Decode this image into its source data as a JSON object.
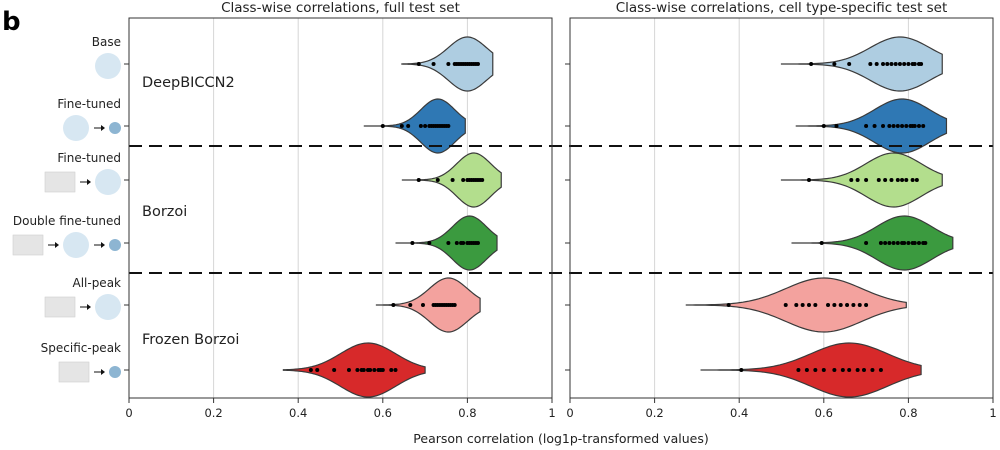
{
  "panel_label": "b",
  "chart_data": {
    "type": "violin",
    "xlabel": "Pearson correlation (log1p-transformed values)",
    "xlim": [
      0,
      1
    ],
    "xticks": [
      "0",
      "0.2",
      "0.4",
      "0.6",
      "0.8",
      "1"
    ],
    "grid": "vertical",
    "groups": [
      "DeepBICCN2",
      "Borzoi",
      "Frozen Borzoi"
    ],
    "rows": [
      {
        "label": "Base",
        "group": "DeepBICCN2",
        "color": "#aecde1",
        "schematic": [
          "circle-large"
        ]
      },
      {
        "label": "Fine-tuned",
        "group": "DeepBICCN2",
        "color": "#2f78b4",
        "schematic": [
          "circle-large",
          "arrow",
          "circle-small"
        ]
      },
      {
        "label": "Fine-tuned",
        "group": "Borzoi",
        "color": "#b3de8d",
        "schematic": [
          "rect",
          "arrow",
          "circle-large"
        ]
      },
      {
        "label": "Double fine-tuned",
        "group": "Borzoi",
        "color": "#3b9a3f",
        "schematic": [
          "rect",
          "arrow",
          "circle-large",
          "arrow",
          "circle-small"
        ]
      },
      {
        "label": "All-peak",
        "group": "Frozen Borzoi",
        "color": "#f3a29e",
        "schematic": [
          "rect",
          "arrow",
          "circle-large"
        ]
      },
      {
        "label": "Specific-peak",
        "group": "Frozen Borzoi",
        "color": "#d7292a",
        "schematic": [
          "rect",
          "arrow",
          "circle-small"
        ]
      }
    ],
    "panels": [
      {
        "title": "Class-wise correlations, full test set",
        "series": [
          {
            "min": 0.645,
            "max": 0.86,
            "median": 0.8,
            "spread": 0.045,
            "points": [
              0.685,
              0.72,
              0.755,
              0.77,
              0.775,
              0.78,
              0.785,
              0.79,
              0.795,
              0.8,
              0.805,
              0.81,
              0.815,
              0.82,
              0.825
            ]
          },
          {
            "min": 0.555,
            "max": 0.795,
            "median": 0.73,
            "spread": 0.04,
            "points": [
              0.6,
              0.645,
              0.66,
              0.69,
              0.7,
              0.71,
              0.715,
              0.72,
              0.725,
              0.73,
              0.735,
              0.74,
              0.745,
              0.75,
              0.755
            ]
          },
          {
            "min": 0.645,
            "max": 0.88,
            "median": 0.815,
            "spread": 0.04,
            "points": [
              0.685,
              0.73,
              0.765,
              0.79,
              0.8,
              0.805,
              0.81,
              0.815,
              0.82,
              0.825,
              0.83,
              0.835
            ]
          },
          {
            "min": 0.63,
            "max": 0.87,
            "median": 0.805,
            "spread": 0.04,
            "points": [
              0.67,
              0.71,
              0.755,
              0.775,
              0.785,
              0.79,
              0.8,
              0.805,
              0.81,
              0.815,
              0.82,
              0.825
            ]
          },
          {
            "min": 0.585,
            "max": 0.83,
            "median": 0.755,
            "spread": 0.045,
            "points": [
              0.625,
              0.665,
              0.695,
              0.72,
              0.725,
              0.73,
              0.735,
              0.74,
              0.745,
              0.75,
              0.755,
              0.76,
              0.765,
              0.77
            ]
          },
          {
            "min": 0.365,
            "max": 0.7,
            "median": 0.565,
            "spread": 0.065,
            "points": [
              0.43,
              0.445,
              0.485,
              0.52,
              0.54,
              0.55,
              0.555,
              0.565,
              0.57,
              0.58,
              0.59,
              0.595,
              0.6,
              0.62,
              0.63
            ]
          }
        ]
      },
      {
        "title": "Class-wise correlations, cell type-specific test set",
        "series": [
          {
            "min": 0.5,
            "max": 0.88,
            "median": 0.78,
            "spread": 0.07,
            "points": [
              0.57,
              0.625,
              0.66,
              0.71,
              0.725,
              0.74,
              0.75,
              0.76,
              0.77,
              0.78,
              0.79,
              0.8,
              0.81,
              0.815,
              0.825,
              0.83
            ]
          },
          {
            "min": 0.535,
            "max": 0.89,
            "median": 0.785,
            "spread": 0.065,
            "points": [
              0.6,
              0.63,
              0.7,
              0.72,
              0.74,
              0.755,
              0.765,
              0.775,
              0.785,
              0.795,
              0.805,
              0.81,
              0.815,
              0.825,
              0.835
            ]
          },
          {
            "min": 0.5,
            "max": 0.88,
            "median": 0.765,
            "spread": 0.065,
            "points": [
              0.565,
              0.665,
              0.68,
              0.7,
              0.73,
              0.745,
              0.76,
              0.775,
              0.785,
              0.795,
              0.81,
              0.82
            ]
          },
          {
            "min": 0.525,
            "max": 0.905,
            "median": 0.79,
            "spread": 0.065,
            "points": [
              0.595,
              0.7,
              0.735,
              0.745,
              0.755,
              0.765,
              0.775,
              0.785,
              0.79,
              0.8,
              0.81,
              0.815,
              0.825,
              0.835,
              0.84
            ]
          },
          {
            "min": 0.275,
            "max": 0.795,
            "median": 0.6,
            "spread": 0.09,
            "points": [
              0.375,
              0.51,
              0.535,
              0.55,
              0.565,
              0.58,
              0.61,
              0.625,
              0.64,
              0.655,
              0.67,
              0.685,
              0.7
            ]
          },
          {
            "min": 0.31,
            "max": 0.83,
            "median": 0.66,
            "spread": 0.09,
            "points": [
              0.405,
              0.54,
              0.56,
              0.58,
              0.6,
              0.625,
              0.645,
              0.66,
              0.68,
              0.695,
              0.715,
              0.735
            ]
          }
        ]
      }
    ]
  }
}
